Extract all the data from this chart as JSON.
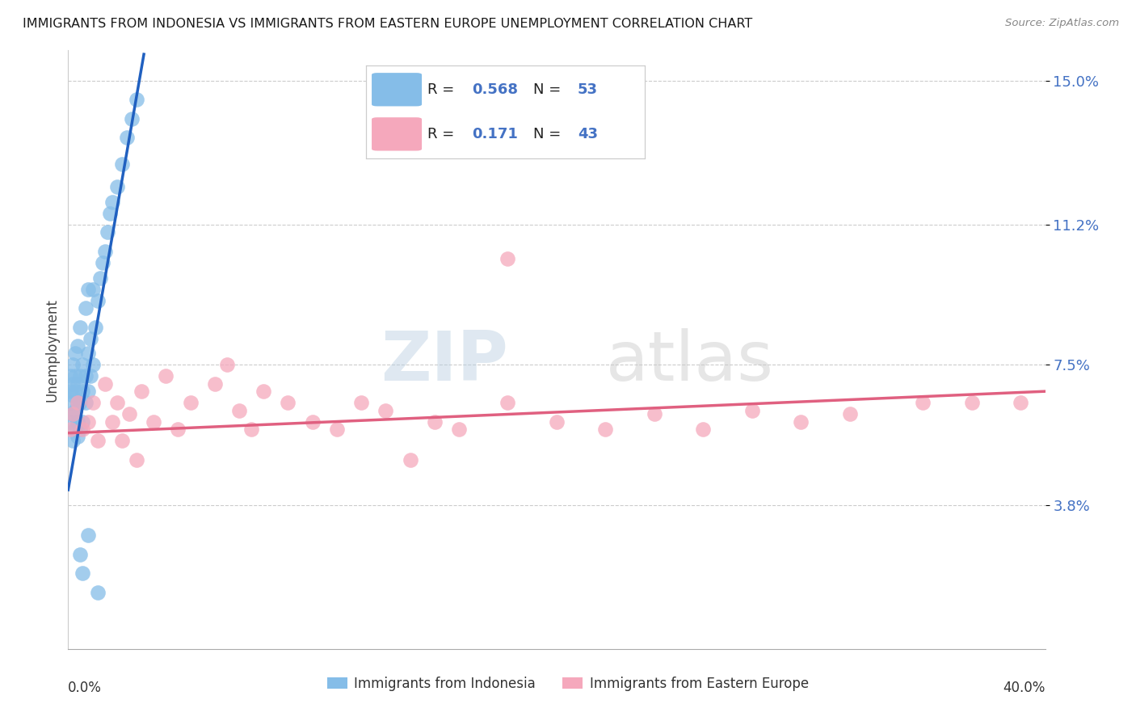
{
  "title": "IMMIGRANTS FROM INDONESIA VS IMMIGRANTS FROM EASTERN EUROPE UNEMPLOYMENT CORRELATION CHART",
  "source": "Source: ZipAtlas.com",
  "ylabel": "Unemployment",
  "ytick_values": [
    0.038,
    0.075,
    0.112,
    0.15
  ],
  "ytick_labels": [
    "3.8%",
    "7.5%",
    "11.2%",
    "15.0%"
  ],
  "xlim": [
    0.0,
    0.4
  ],
  "ylim": [
    0.0,
    0.158
  ],
  "blue_color": "#85bde8",
  "pink_color": "#f5a8bc",
  "blue_line_color": "#2060c0",
  "pink_line_color": "#e06080",
  "watermark_zip": "ZIP",
  "watermark_atlas": "atlas",
  "legend_label_blue": "Immigrants from Indonesia",
  "legend_label_pink": "Immigrants from Eastern Europe",
  "blue_R": "0.568",
  "blue_N": "53",
  "pink_R": "0.171",
  "pink_N": "43",
  "blue_dots_x": [
    0.001,
    0.001,
    0.001,
    0.001,
    0.002,
    0.002,
    0.002,
    0.002,
    0.002,
    0.003,
    0.003,
    0.003,
    0.003,
    0.003,
    0.004,
    0.004,
    0.004,
    0.004,
    0.004,
    0.005,
    0.005,
    0.005,
    0.005,
    0.006,
    0.006,
    0.006,
    0.007,
    0.007,
    0.007,
    0.008,
    0.008,
    0.008,
    0.009,
    0.009,
    0.01,
    0.01,
    0.011,
    0.012,
    0.013,
    0.014,
    0.015,
    0.016,
    0.017,
    0.018,
    0.02,
    0.022,
    0.024,
    0.026,
    0.028,
    0.012,
    0.005,
    0.006,
    0.008
  ],
  "blue_dots_y": [
    0.06,
    0.065,
    0.068,
    0.072,
    0.055,
    0.062,
    0.067,
    0.07,
    0.075,
    0.058,
    0.063,
    0.068,
    0.072,
    0.078,
    0.056,
    0.06,
    0.065,
    0.07,
    0.08,
    0.058,
    0.065,
    0.072,
    0.085,
    0.06,
    0.068,
    0.075,
    0.065,
    0.072,
    0.09,
    0.068,
    0.078,
    0.095,
    0.072,
    0.082,
    0.075,
    0.095,
    0.085,
    0.092,
    0.098,
    0.102,
    0.105,
    0.11,
    0.115,
    0.118,
    0.122,
    0.128,
    0.135,
    0.14,
    0.145,
    0.015,
    0.025,
    0.02,
    0.03
  ],
  "pink_dots_x": [
    0.001,
    0.002,
    0.004,
    0.006,
    0.008,
    0.01,
    0.012,
    0.015,
    0.018,
    0.02,
    0.022,
    0.025,
    0.028,
    0.03,
    0.035,
    0.04,
    0.045,
    0.05,
    0.06,
    0.065,
    0.07,
    0.075,
    0.08,
    0.09,
    0.1,
    0.11,
    0.12,
    0.13,
    0.14,
    0.15,
    0.16,
    0.18,
    0.2,
    0.22,
    0.24,
    0.26,
    0.28,
    0.3,
    0.32,
    0.35,
    0.37,
    0.39,
    0.18
  ],
  "pink_dots_y": [
    0.058,
    0.062,
    0.065,
    0.058,
    0.06,
    0.065,
    0.055,
    0.07,
    0.06,
    0.065,
    0.055,
    0.062,
    0.05,
    0.068,
    0.06,
    0.072,
    0.058,
    0.065,
    0.07,
    0.075,
    0.063,
    0.058,
    0.068,
    0.065,
    0.06,
    0.058,
    0.065,
    0.063,
    0.05,
    0.06,
    0.058,
    0.065,
    0.06,
    0.058,
    0.062,
    0.058,
    0.063,
    0.06,
    0.062,
    0.065,
    0.065,
    0.065,
    0.103
  ]
}
